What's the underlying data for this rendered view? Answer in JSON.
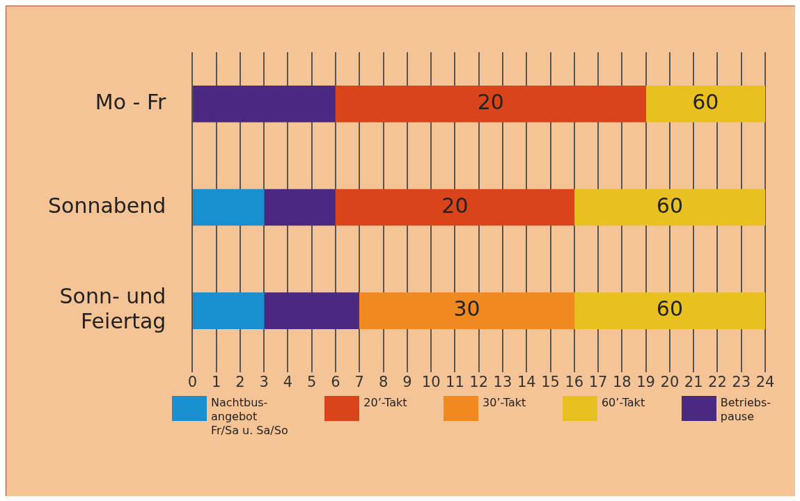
{
  "chart_data": {
    "type": "bar",
    "orientation": "horizontal",
    "categories": [
      "Mo - Fr",
      "Sonnabend",
      "Sonn- und\nFeiertag"
    ],
    "series": [
      {
        "name": "Nachtbus-\nangebot\nFr/Sa u. Sa/So",
        "color": "#1a8fd0",
        "values": [
          null,
          3,
          3
        ],
        "base": [
          null,
          0,
          0
        ]
      },
      {
        "name": "20’-Takt",
        "color": "#d9441a",
        "values": [
          13,
          10,
          null
        ],
        "base": [
          6,
          6,
          null
        ]
      },
      {
        "name": "30’-Takt",
        "color": "#f08a20",
        "values": [
          null,
          null,
          9
        ],
        "base": [
          null,
          null,
          7
        ]
      },
      {
        "name": "60’-Takt",
        "color": "#e8c020",
        "values": [
          5,
          8,
          8
        ],
        "base": [
          19,
          16,
          16
        ]
      },
      {
        "name": "Betriebs-\npause",
        "color": "#4a2a80",
        "values": [
          6,
          3,
          4
        ],
        "base": [
          0,
          3,
          3
        ]
      }
    ],
    "annotations": [
      "20",
      "60",
      "20",
      "60",
      "30",
      "60"
    ],
    "xlim": [
      0,
      24
    ],
    "xticks": [
      0,
      1,
      2,
      3,
      4,
      5,
      6,
      7,
      8,
      9,
      10,
      11,
      12,
      13,
      14,
      15,
      16,
      17,
      18,
      19,
      20,
      21,
      22,
      23,
      24
    ],
    "grid": "x",
    "legend": "bottom"
  }
}
